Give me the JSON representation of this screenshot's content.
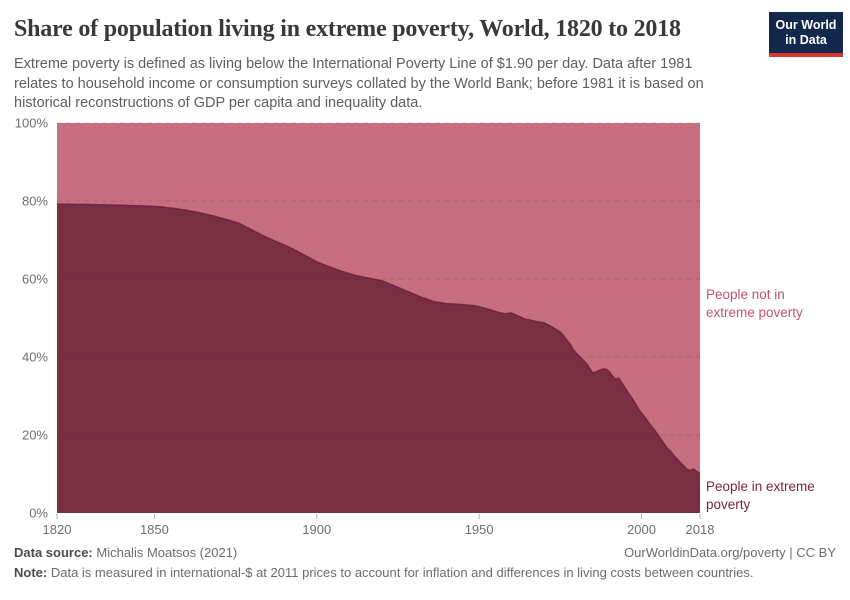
{
  "header": {
    "title": "Share of population living in extreme poverty, World, 1820 to 2018",
    "logo": {
      "line1": "Our World",
      "line2": "in Data"
    }
  },
  "subtitle": {
    "lines": [
      "Extreme poverty is defined as living below the International Poverty Line of $1.90 per day. Data after 1981",
      "relates to household income or consumption surveys collated by the World Bank; before 1981 it is based on",
      "historical reconstructions of GDP per capita and inequality data."
    ]
  },
  "chart_data": {
    "type": "area",
    "stacked": true,
    "stack_total_percent": 100,
    "title": "Share of population living in extreme poverty, World, 1820 to 2018",
    "xlabel": "",
    "ylabel": "",
    "x_domain": [
      1820,
      2018
    ],
    "y_domain": [
      0,
      100
    ],
    "x_tick_values": [
      1820,
      1850,
      1900,
      1950,
      2000,
      2018
    ],
    "x_tick_labels": [
      "1820",
      "1850",
      "1900",
      "1950",
      "2000",
      "2018"
    ],
    "y_tick_values": [
      0,
      20,
      40,
      60,
      80,
      100
    ],
    "y_tick_labels": [
      "0%",
      "20%",
      "40%",
      "60%",
      "80%",
      "100%"
    ],
    "grid": "dashed horizontal gridlines",
    "legend_position": "inline right of plot",
    "series": [
      {
        "name": "People in extreme poverty",
        "color": "#7a2e42",
        "line_color": "#6b2238",
        "points": [
          [
            1820,
            79.2
          ],
          [
            1830,
            79.1
          ],
          [
            1840,
            78.9
          ],
          [
            1848,
            78.7
          ],
          [
            1852,
            78.5
          ],
          [
            1856,
            78.1
          ],
          [
            1860,
            77.6
          ],
          [
            1864,
            77.0
          ],
          [
            1868,
            76.2
          ],
          [
            1872,
            75.3
          ],
          [
            1876,
            74.3
          ],
          [
            1880,
            72.6
          ],
          [
            1884,
            70.9
          ],
          [
            1888,
            69.4
          ],
          [
            1892,
            68.0
          ],
          [
            1896,
            66.2
          ],
          [
            1900,
            64.4
          ],
          [
            1904,
            63.1
          ],
          [
            1908,
            61.9
          ],
          [
            1912,
            60.9
          ],
          [
            1916,
            60.2
          ],
          [
            1920,
            59.6
          ],
          [
            1924,
            58.2
          ],
          [
            1928,
            56.8
          ],
          [
            1932,
            55.4
          ],
          [
            1936,
            54.2
          ],
          [
            1940,
            53.7
          ],
          [
            1944,
            53.5
          ],
          [
            1948,
            53.2
          ],
          [
            1950,
            52.9
          ],
          [
            1953,
            52.2
          ],
          [
            1956,
            51.4
          ],
          [
            1958,
            51.1
          ],
          [
            1960,
            51.3
          ],
          [
            1962,
            50.5
          ],
          [
            1964,
            49.8
          ],
          [
            1966,
            49.4
          ],
          [
            1968,
            49.0
          ],
          [
            1970,
            48.8
          ],
          [
            1972,
            47.9
          ],
          [
            1974,
            46.9
          ],
          [
            1975,
            46.4
          ],
          [
            1976,
            45.5
          ],
          [
            1977,
            44.3
          ],
          [
            1978,
            43.3
          ],
          [
            1979,
            41.9
          ],
          [
            1980,
            40.9
          ],
          [
            1981,
            40.1
          ],
          [
            1982,
            39.2
          ],
          [
            1983,
            38.4
          ],
          [
            1984,
            37.1
          ],
          [
            1985,
            35.9
          ],
          [
            1986,
            36.2
          ],
          [
            1987,
            36.6
          ],
          [
            1988,
            36.9
          ],
          [
            1989,
            36.9
          ],
          [
            1990,
            36.3
          ],
          [
            1991,
            35.2
          ],
          [
            1992,
            34.3
          ],
          [
            1993,
            34.6
          ],
          [
            1994,
            33.3
          ],
          [
            1995,
            32.0
          ],
          [
            1996,
            30.7
          ],
          [
            1997,
            29.5
          ],
          [
            1998,
            28.2
          ],
          [
            1999,
            26.8
          ],
          [
            2000,
            25.6
          ],
          [
            2001,
            24.6
          ],
          [
            2002,
            23.4
          ],
          [
            2003,
            22.3
          ],
          [
            2004,
            21.3
          ],
          [
            2005,
            20.1
          ],
          [
            2006,
            18.9
          ],
          [
            2007,
            17.7
          ],
          [
            2008,
            16.6
          ],
          [
            2009,
            15.8
          ],
          [
            2010,
            14.7
          ],
          [
            2011,
            13.8
          ],
          [
            2012,
            12.9
          ],
          [
            2013,
            12.1
          ],
          [
            2014,
            11.2
          ],
          [
            2015,
            10.9
          ],
          [
            2016,
            11.3
          ],
          [
            2017,
            10.6
          ],
          [
            2018,
            10.1
          ]
        ]
      },
      {
        "name": "People not in extreme poverty",
        "color": "#c76e80",
        "derived": "100 minus share of people in extreme poverty (fills remainder of 100% stack)"
      }
    ]
  },
  "legend": {
    "not_poverty": {
      "line1": "People not in",
      "line2": "extreme poverty"
    },
    "poverty": {
      "line1": "People in extreme",
      "line2": "poverty"
    }
  },
  "footer": {
    "source_label": "Data source:",
    "source_value": "Michalis Moatsos (2021)",
    "credit": "OurWorldinData.org/poverty | CC BY",
    "note_label": "Note:",
    "note_value": "Data is measured in international-$ at 2011 prices to account for inflation and differences in living costs between countries."
  }
}
